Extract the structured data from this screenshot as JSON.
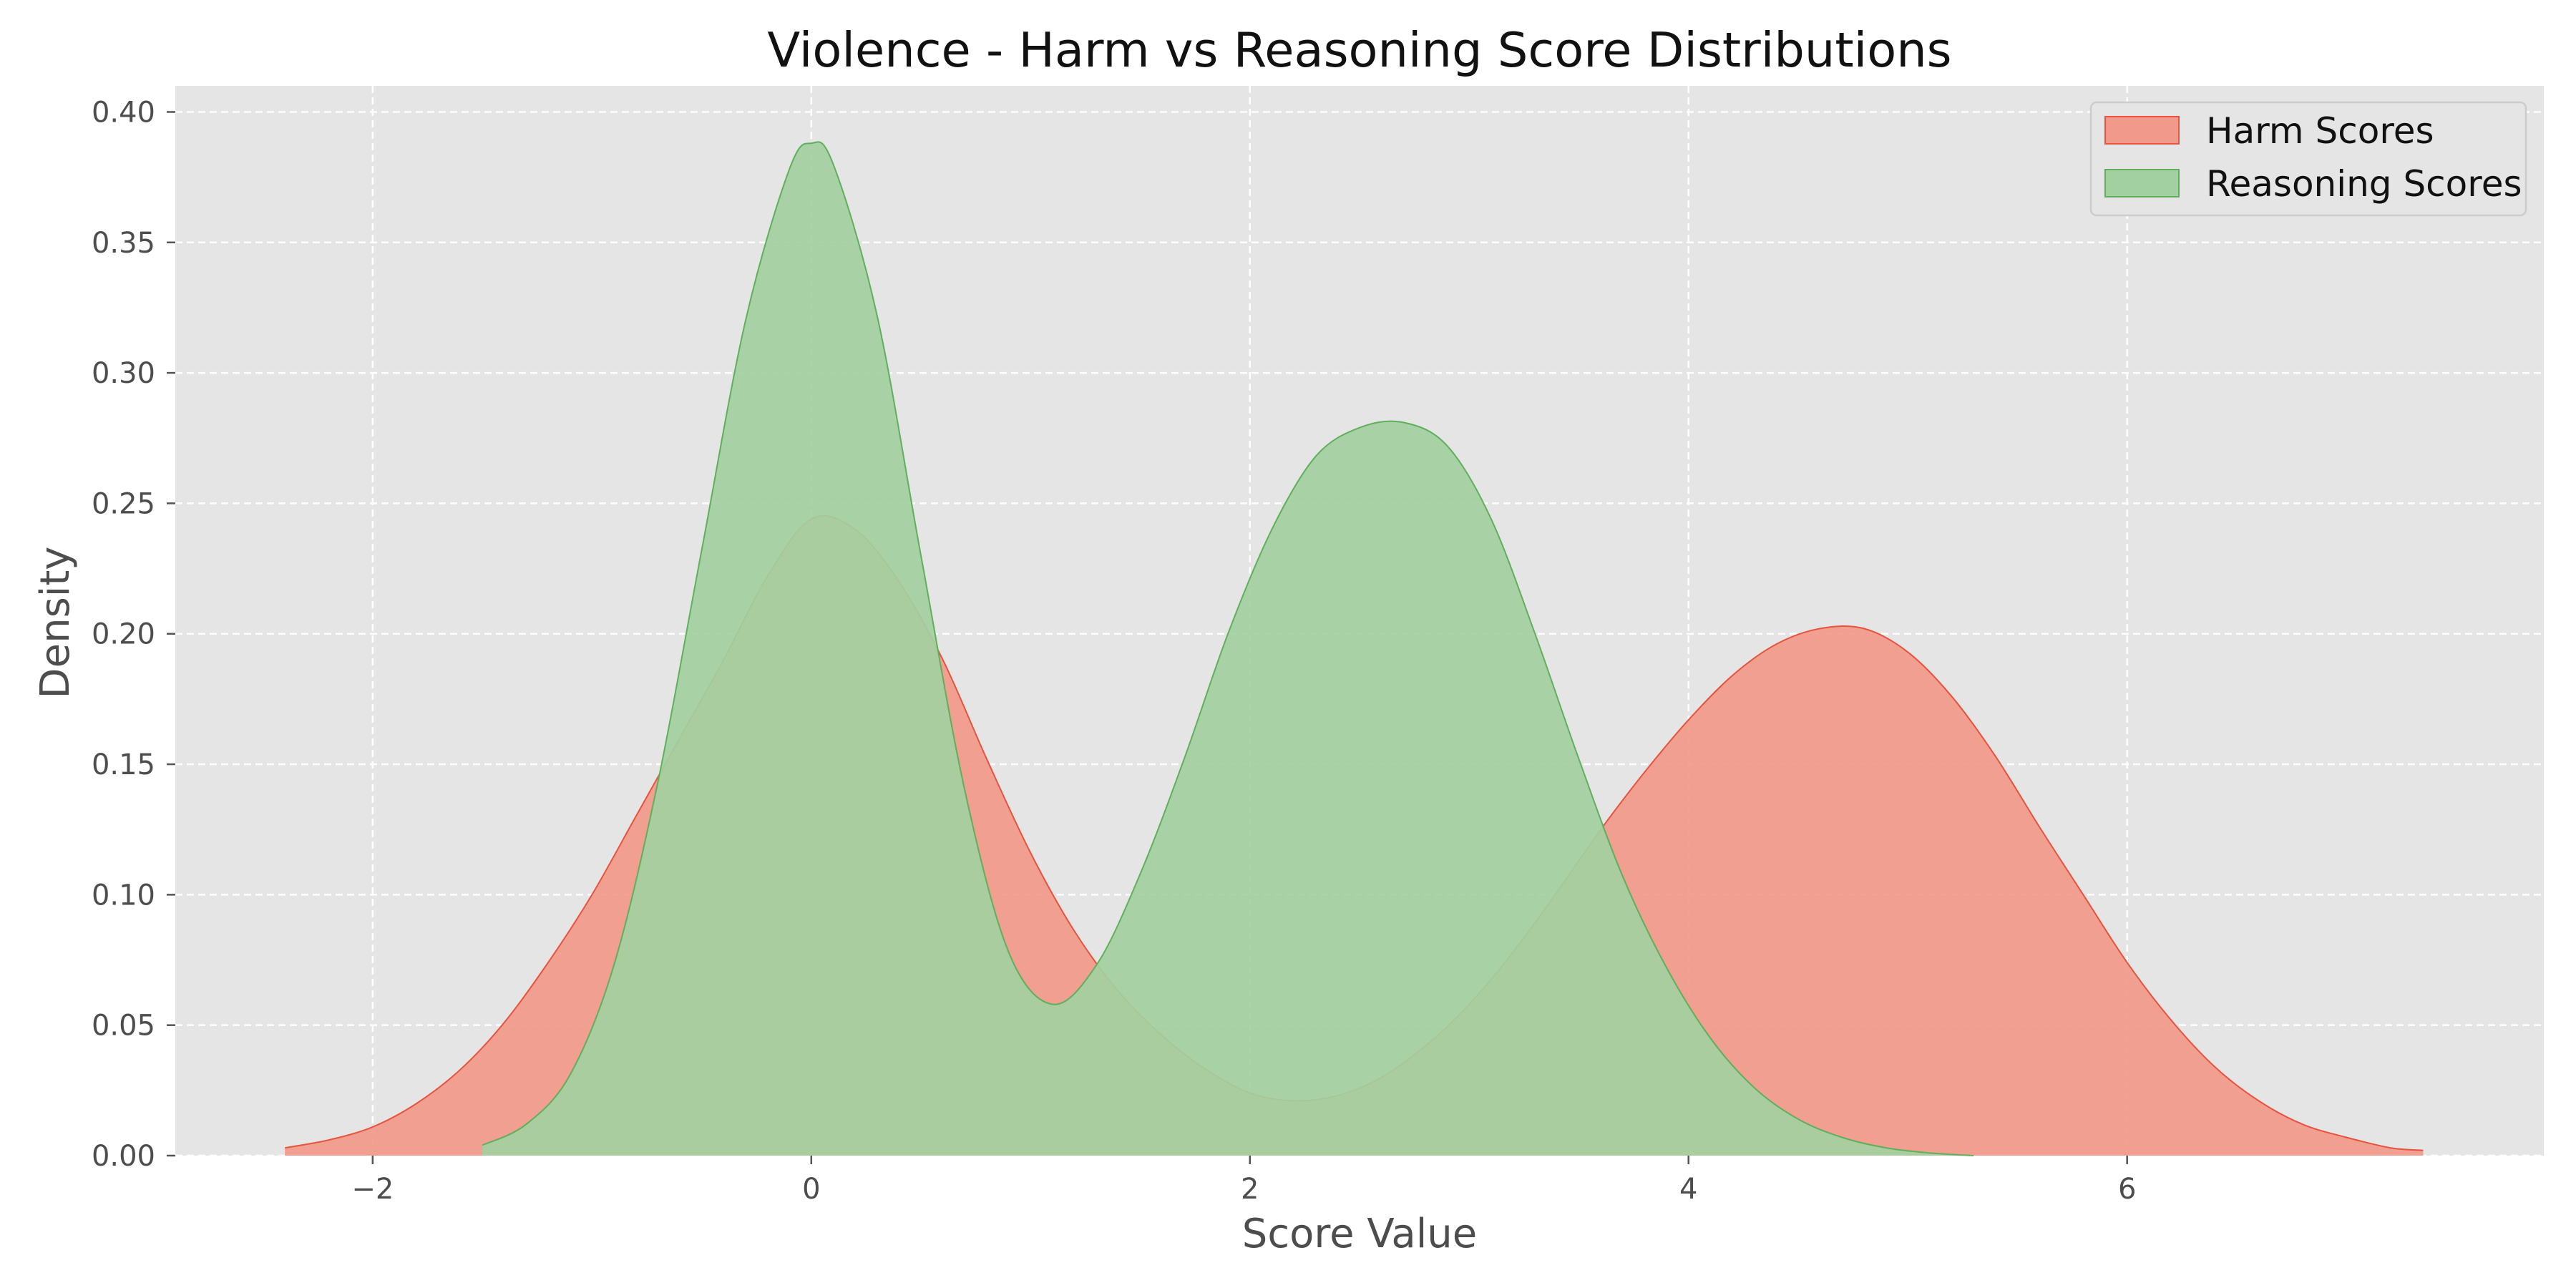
{
  "chart_data": {
    "type": "area",
    "title": "Violence - Harm vs Reasoning Score Distributions",
    "xlabel": "Score Value",
    "ylabel": "Density",
    "xlim": [
      -2.9,
      7.9
    ],
    "ylim": [
      0,
      0.41
    ],
    "x_ticks": [
      -2,
      0,
      2,
      4,
      6
    ],
    "x_tick_labels": [
      "−2",
      "0",
      "2",
      "4",
      "6"
    ],
    "y_ticks": [
      0,
      0.05,
      0.1,
      0.15,
      0.2,
      0.25,
      0.3,
      0.35,
      0.4
    ],
    "y_tick_labels": [
      "0.00",
      "0.05",
      "0.10",
      "0.15",
      "0.20",
      "0.25",
      "0.30",
      "0.35",
      "0.40"
    ],
    "grid": true,
    "legend_position": "top-right",
    "series": [
      {
        "name": "Harm Scores",
        "color": "#f1998a",
        "edge_color": "#e8533d",
        "x": [
          -2.4,
          -2.2,
          -2.0,
          -1.8,
          -1.6,
          -1.4,
          -1.2,
          -1.0,
          -0.8,
          -0.6,
          -0.4,
          -0.2,
          0.0,
          0.2,
          0.4,
          0.6,
          0.8,
          1.0,
          1.2,
          1.4,
          1.6,
          1.8,
          2.0,
          2.2,
          2.4,
          2.6,
          2.8,
          3.0,
          3.2,
          3.4,
          3.6,
          3.8,
          4.0,
          4.2,
          4.4,
          4.6,
          4.8,
          5.0,
          5.2,
          5.4,
          5.6,
          5.8,
          6.0,
          6.2,
          6.4,
          6.6,
          6.8,
          7.0,
          7.2,
          7.35
        ],
        "y": [
          0.003,
          0.006,
          0.011,
          0.02,
          0.033,
          0.051,
          0.074,
          0.1,
          0.13,
          0.16,
          0.19,
          0.222,
          0.244,
          0.24,
          0.22,
          0.19,
          0.152,
          0.116,
          0.086,
          0.063,
          0.046,
          0.033,
          0.024,
          0.021,
          0.023,
          0.03,
          0.042,
          0.058,
          0.078,
          0.101,
          0.125,
          0.147,
          0.167,
          0.184,
          0.196,
          0.202,
          0.202,
          0.193,
          0.176,
          0.153,
          0.126,
          0.1,
          0.074,
          0.052,
          0.034,
          0.021,
          0.012,
          0.007,
          0.003,
          0.002
        ]
      },
      {
        "name": "Reasoning Scores",
        "color": "#a3d0a1",
        "edge_color": "#5faf5b",
        "x": [
          -1.5,
          -1.3,
          -1.1,
          -0.9,
          -0.7,
          -0.5,
          -0.3,
          -0.1,
          0.0,
          0.1,
          0.3,
          0.5,
          0.7,
          0.9,
          1.1,
          1.3,
          1.5,
          1.7,
          1.9,
          2.1,
          2.3,
          2.5,
          2.7,
          2.9,
          3.1,
          3.3,
          3.5,
          3.7,
          3.9,
          4.1,
          4.3,
          4.5,
          4.7,
          4.9,
          5.1,
          5.3
        ],
        "y": [
          0.004,
          0.012,
          0.031,
          0.073,
          0.143,
          0.232,
          0.32,
          0.378,
          0.388,
          0.38,
          0.322,
          0.23,
          0.14,
          0.078,
          0.058,
          0.073,
          0.108,
          0.152,
          0.2,
          0.24,
          0.268,
          0.279,
          0.281,
          0.272,
          0.244,
          0.2,
          0.152,
          0.107,
          0.072,
          0.045,
          0.026,
          0.014,
          0.007,
          0.003,
          0.001,
          0.0
        ]
      }
    ]
  }
}
